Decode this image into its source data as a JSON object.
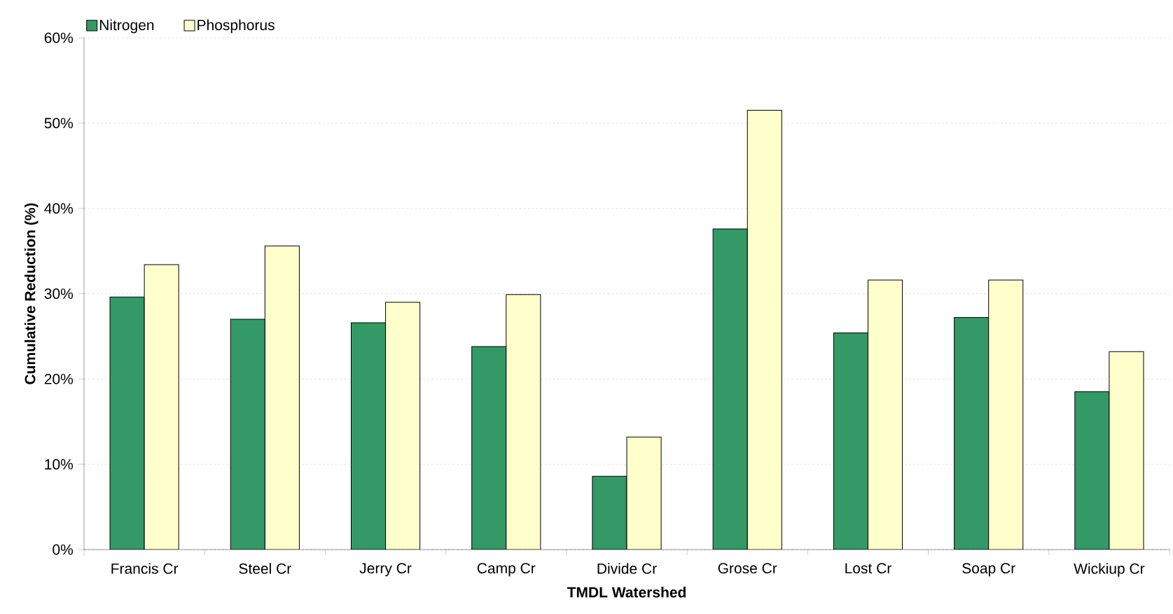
{
  "chart_data": {
    "type": "bar",
    "xlabel": "TMDL Watershed",
    "ylabel": "Cumulative Reduction (%)",
    "categories": [
      "Francis Cr",
      "Steel Cr",
      "Jerry Cr",
      "Camp Cr",
      "Divide Cr",
      "Grose Cr",
      "Lost Cr",
      "Soap Cr",
      "Wickiup Cr"
    ],
    "series": [
      {
        "name": "Nitrogen",
        "color": "#339966",
        "values": [
          29.6,
          27.0,
          26.6,
          23.8,
          8.6,
          37.6,
          25.4,
          27.2,
          18.5
        ]
      },
      {
        "name": "Phosphorus",
        "color": "#ffffcc",
        "values": [
          33.4,
          35.6,
          29.0,
          29.9,
          13.2,
          51.5,
          31.6,
          31.6,
          23.2
        ]
      }
    ],
    "ylim": [
      0,
      60
    ],
    "yticks": [
      {
        "value": 0,
        "label": "0%"
      },
      {
        "value": 10,
        "label": "10%"
      },
      {
        "value": 20,
        "label": "20%"
      },
      {
        "value": 30,
        "label": "30%"
      },
      {
        "value": 40,
        "label": "40%"
      },
      {
        "value": 50,
        "label": "50%"
      },
      {
        "value": 60,
        "label": "60%"
      }
    ],
    "grid": "y",
    "legend": "top left"
  }
}
